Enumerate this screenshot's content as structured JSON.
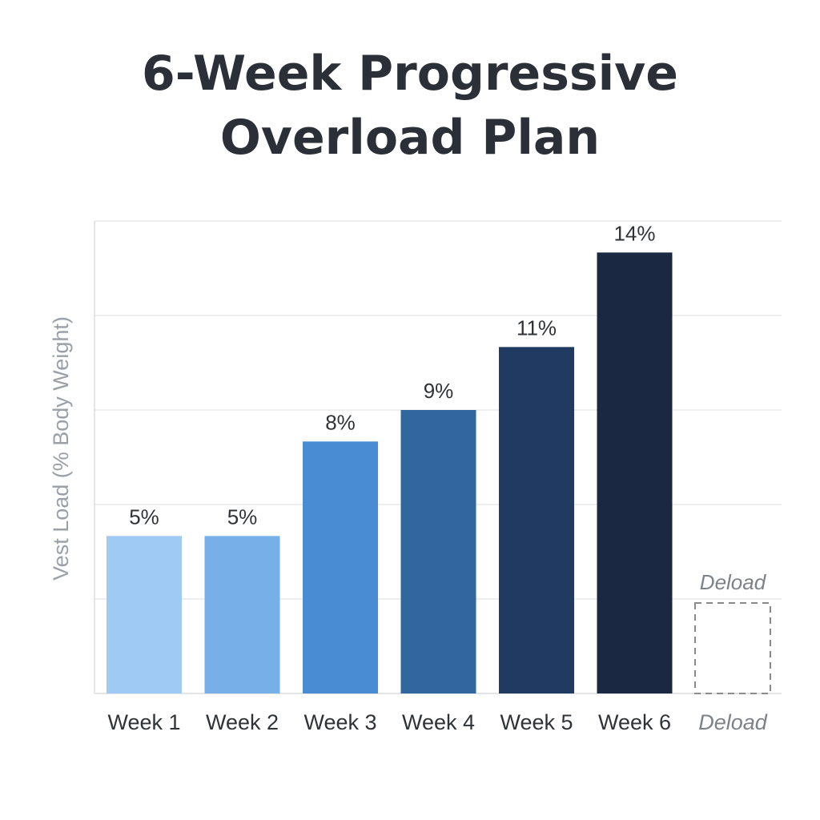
{
  "chart_data": {
    "type": "bar",
    "title_lines": [
      "6-Week Progressive",
      "Overload Plan"
    ],
    "ylabel": "Vest Load (% Body Weight)",
    "xlabel": "",
    "categories": [
      "Week 1",
      "Week 2",
      "Week 3",
      "Week 4",
      "Week 5",
      "Week 6"
    ],
    "values": [
      5,
      5,
      8,
      9,
      11,
      14
    ],
    "value_labels": [
      "5%",
      "5%",
      "8%",
      "9%",
      "11%",
      "14%"
    ],
    "colors": [
      "#9fcaf3",
      "#77afe8",
      "#4a8cd3",
      "#30679e",
      "#203a61",
      "#1b2842"
    ],
    "ghost_bar": {
      "category": "Deload",
      "label": "Deload",
      "style": "dashed-outline",
      "color": "#8a8a8a"
    },
    "ylim": [
      0,
      15
    ],
    "gridline_values": [
      0,
      3,
      6,
      9,
      12,
      15
    ],
    "grid": true,
    "legend": "none"
  }
}
